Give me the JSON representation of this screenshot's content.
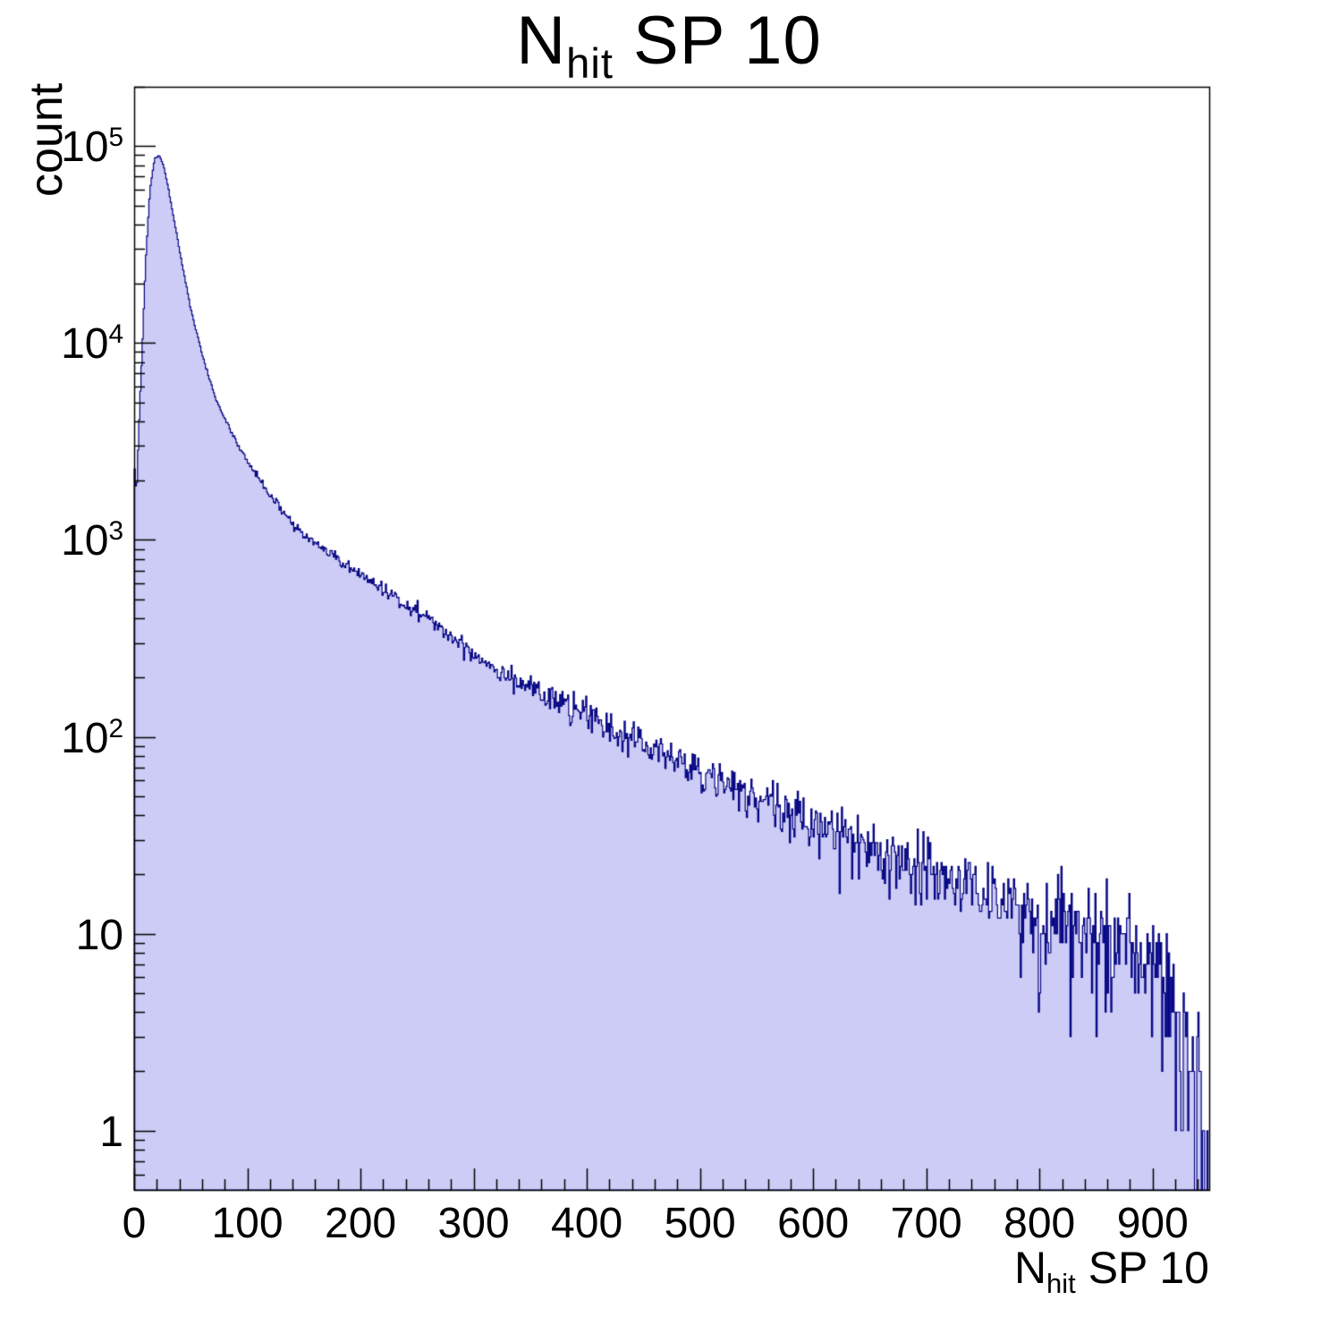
{
  "title": {
    "prefix": "N",
    "subscript": "hit",
    "suffix": " SP 10"
  },
  "y_axis": {
    "label": "count",
    "scale": "log",
    "min": 0.5,
    "max": 200000,
    "ticks": [
      {
        "value": 1,
        "base": "1",
        "exp": ""
      },
      {
        "value": 10,
        "base": "10",
        "exp": ""
      },
      {
        "value": 100,
        "base": "10",
        "exp": "2"
      },
      {
        "value": 1000,
        "base": "10",
        "exp": "3"
      },
      {
        "value": 10000,
        "base": "10",
        "exp": "4"
      },
      {
        "value": 100000,
        "base": "10",
        "exp": "5"
      }
    ]
  },
  "x_axis": {
    "label_prefix": "N",
    "label_subscript": "hit",
    "label_suffix": " SP 10",
    "min": 0,
    "max": 950,
    "major_ticks": [
      0,
      100,
      200,
      300,
      400,
      500,
      600,
      700,
      800,
      900
    ],
    "minor_tick_step": 20
  },
  "chart_data": {
    "type": "bar",
    "subtype": "histogram-1d",
    "title": "N_hit SP 10",
    "xlabel": "N_hit SP 10",
    "ylabel": "count",
    "log_y": true,
    "x_range": [
      0,
      950
    ],
    "y_range": [
      0.5,
      200000
    ],
    "bin_width": 1,
    "grid": false,
    "legend": "none",
    "fill_color": "#cdccf6",
    "line_color": "#000080",
    "envelope_points": {
      "comment": "count values read off the log axis at sampled x positions; bins fluctuate with Poisson noise around this envelope",
      "x": [
        0,
        2,
        4,
        7,
        10,
        14,
        18,
        22,
        26,
        30,
        36,
        42,
        50,
        60,
        70,
        85,
        100,
        120,
        140,
        160,
        180,
        200,
        225,
        250,
        275,
        300,
        325,
        350,
        375,
        400,
        425,
        450,
        475,
        500,
        525,
        550,
        575,
        600,
        625,
        650,
        675,
        700,
        725,
        750,
        775,
        800,
        825,
        850,
        875,
        900,
        912,
        922,
        932,
        942,
        950
      ],
      "y": [
        2600,
        1700,
        3500,
        9000,
        25000,
        60000,
        86000,
        90000,
        80000,
        62000,
        40000,
        26000,
        15000,
        8800,
        5600,
        3600,
        2500,
        1700,
        1200,
        950,
        800,
        660,
        540,
        440,
        340,
        265,
        215,
        180,
        150,
        128,
        108,
        92,
        79,
        66,
        56,
        49,
        42,
        38,
        33,
        28,
        24,
        21,
        18,
        16,
        14,
        12,
        11,
        10,
        9,
        8,
        6,
        4,
        2.5,
        1.2,
        0.8
      ]
    },
    "peak": {
      "x": 20,
      "count": 90000
    },
    "noise_model": {
      "type": "poisson",
      "seed": 42
    }
  }
}
